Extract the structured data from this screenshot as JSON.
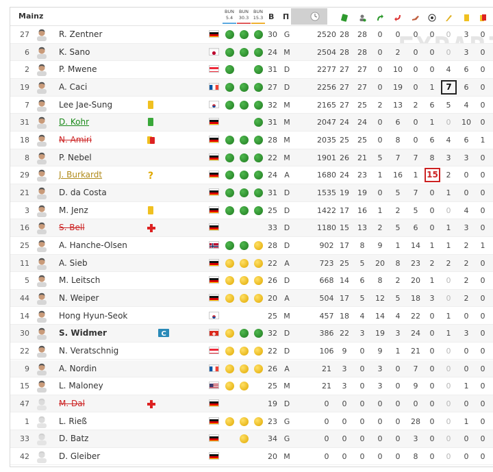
{
  "team": "Mainz",
  "watermark": "EXPARI.COM",
  "header": {
    "games": [
      {
        "opp": "BUN",
        "date": "5.4"
      },
      {
        "opp": "BUN",
        "date": "30.3"
      },
      {
        "opp": "BUN",
        "date": "15.3"
      }
    ],
    "age_label": "В",
    "pos_label": "П",
    "stat_icons": [
      "minutes-icon",
      "appearances-icon",
      "starts-icon",
      "sub-in-icon",
      "sub-out-icon",
      "assists-icon",
      "goals-icon",
      "own-goal-icon",
      "yellow-card-icon",
      "second-yellow-icon",
      "red-card-icon"
    ]
  },
  "colors": {
    "green": "#2e9a2e",
    "yellow": "#f0c020",
    "red": "#dd2222",
    "grey": "#d0d0d0"
  },
  "players": [
    {
      "num": "27",
      "name": "R. Zentner",
      "style": "",
      "flag": "de",
      "dots": [
        "g",
        "g",
        "g"
      ],
      "age": "30",
      "pos": "G",
      "min": "2520",
      "s": [
        "28",
        "28",
        "0",
        "0",
        "0",
        "0",
        "0",
        "3",
        "0",
        "0"
      ],
      "status": ""
    },
    {
      "num": "6",
      "name": "K. Sano",
      "style": "",
      "flag": "jp",
      "dots": [
        "g",
        "g",
        "g"
      ],
      "age": "24",
      "pos": "M",
      "min": "2504",
      "s": [
        "28",
        "28",
        "0",
        "2",
        "0",
        "0",
        "0",
        "3",
        "0",
        "0"
      ],
      "status": ""
    },
    {
      "num": "2",
      "name": "P. Mwene",
      "style": "",
      "flag": "at",
      "dots": [
        "g",
        "",
        "g"
      ],
      "age": "31",
      "pos": "D",
      "min": "2277",
      "s": [
        "27",
        "27",
        "0",
        "10",
        "0",
        "0",
        "4",
        "6",
        "0",
        "0"
      ],
      "status": ""
    },
    {
      "num": "19",
      "name": "A. Caci",
      "style": "",
      "flag": "fr",
      "dots": [
        "g",
        "g",
        "g"
      ],
      "age": "27",
      "pos": "D",
      "min": "2256",
      "s": [
        "27",
        "27",
        "0",
        "19",
        "0",
        "1",
        "7",
        "6",
        "0",
        "0"
      ],
      "status": "",
      "boxk": 6
    },
    {
      "num": "7",
      "name": "Lee Jae-Sung",
      "style": "",
      "flag": "kr",
      "dots": [
        "g",
        "g",
        "g"
      ],
      "age": "32",
      "pos": "M",
      "min": "2165",
      "s": [
        "27",
        "25",
        "2",
        "13",
        "2",
        "6",
        "5",
        "4",
        "0",
        "0"
      ],
      "status": "yellow"
    },
    {
      "num": "31",
      "name": "D. Kohr",
      "style": "green",
      "flag": "de",
      "dots": [
        "",
        "",
        "g"
      ],
      "age": "31",
      "pos": "M",
      "min": "2047",
      "s": [
        "24",
        "24",
        "0",
        "6",
        "0",
        "1",
        "0",
        "10",
        "0",
        "1"
      ],
      "status": "green"
    },
    {
      "num": "18",
      "name": "N. Amiri",
      "style": "red",
      "flag": "de",
      "dots": [
        "g",
        "g",
        "g"
      ],
      "age": "28",
      "pos": "M",
      "min": "2035",
      "s": [
        "25",
        "25",
        "0",
        "8",
        "0",
        "6",
        "4",
        "6",
        "1",
        "1"
      ],
      "status": "yellowred"
    },
    {
      "num": "8",
      "name": "P. Nebel",
      "style": "",
      "flag": "de",
      "dots": [
        "g",
        "g",
        "g"
      ],
      "age": "22",
      "pos": "M",
      "min": "1901",
      "s": [
        "26",
        "21",
        "5",
        "7",
        "7",
        "8",
        "3",
        "3",
        "0",
        "0"
      ],
      "status": ""
    },
    {
      "num": "29",
      "name": "J. Burkardt",
      "style": "gold",
      "flag": "de",
      "dots": [
        "g",
        "g",
        "g"
      ],
      "age": "24",
      "pos": "A",
      "min": "1680",
      "s": [
        "24",
        "23",
        "1",
        "16",
        "1",
        "15",
        "2",
        "0",
        "0",
        "0"
      ],
      "status": "question",
      "boxr": 5
    },
    {
      "num": "21",
      "name": "D. da Costa",
      "style": "",
      "flag": "de",
      "dots": [
        "g",
        "g",
        "g"
      ],
      "age": "31",
      "pos": "D",
      "min": "1535",
      "s": [
        "19",
        "19",
        "0",
        "5",
        "7",
        "0",
        "1",
        "0",
        "0",
        "0"
      ],
      "status": ""
    },
    {
      "num": "3",
      "name": "M. Jenz",
      "style": "",
      "flag": "de",
      "dots": [
        "g",
        "g",
        "g"
      ],
      "age": "25",
      "pos": "D",
      "min": "1422",
      "s": [
        "17",
        "16",
        "1",
        "2",
        "5",
        "0",
        "0",
        "4",
        "0",
        "0"
      ],
      "status": "yellow"
    },
    {
      "num": "16",
      "name": "S. Bell",
      "style": "red",
      "flag": "de",
      "dots": [
        "",
        "",
        ""
      ],
      "age": "33",
      "pos": "D",
      "min": "1180",
      "s": [
        "15",
        "13",
        "2",
        "5",
        "6",
        "0",
        "1",
        "3",
        "0",
        "0"
      ],
      "status": "injury"
    },
    {
      "num": "25",
      "name": "A. Hanche-Olsen",
      "style": "",
      "flag": "no",
      "dots": [
        "g",
        "g",
        "y"
      ],
      "age": "28",
      "pos": "D",
      "min": "902",
      "s": [
        "17",
        "8",
        "9",
        "1",
        "14",
        "1",
        "1",
        "2",
        "1",
        "0"
      ],
      "status": ""
    },
    {
      "num": "11",
      "name": "A. Sieb",
      "style": "",
      "flag": "de",
      "dots": [
        "y",
        "y",
        "y"
      ],
      "age": "22",
      "pos": "A",
      "min": "723",
      "s": [
        "25",
        "5",
        "20",
        "8",
        "23",
        "2",
        "2",
        "2",
        "0",
        "0"
      ],
      "status": ""
    },
    {
      "num": "5",
      "name": "M. Leitsch",
      "style": "",
      "flag": "de",
      "dots": [
        "y",
        "y",
        "y"
      ],
      "age": "26",
      "pos": "D",
      "min": "668",
      "s": [
        "14",
        "6",
        "8",
        "2",
        "20",
        "1",
        "0",
        "2",
        "0",
        "0"
      ],
      "status": ""
    },
    {
      "num": "44",
      "name": "N. Weiper",
      "style": "",
      "flag": "de",
      "dots": [
        "y",
        "y",
        "y"
      ],
      "age": "20",
      "pos": "A",
      "min": "504",
      "s": [
        "17",
        "5",
        "12",
        "5",
        "18",
        "3",
        "0",
        "2",
        "0",
        "0"
      ],
      "status": ""
    },
    {
      "num": "14",
      "name": "Hong Hyun-Seok",
      "style": "",
      "flag": "kr",
      "dots": [
        "",
        "",
        ""
      ],
      "age": "25",
      "pos": "M",
      "min": "457",
      "s": [
        "18",
        "4",
        "14",
        "4",
        "22",
        "0",
        "1",
        "0",
        "0",
        "0"
      ],
      "status": ""
    },
    {
      "num": "30",
      "name": "S. Widmer",
      "style": "bold",
      "flag": "ch",
      "dots": [
        "y",
        "g",
        "g"
      ],
      "age": "32",
      "pos": "D",
      "min": "386",
      "s": [
        "22",
        "3",
        "19",
        "3",
        "24",
        "0",
        "1",
        "3",
        "0",
        "0"
      ],
      "status": "captain"
    },
    {
      "num": "22",
      "name": "N. Veratschnig",
      "style": "",
      "flag": "at",
      "dots": [
        "y",
        "y",
        "y"
      ],
      "age": "22",
      "pos": "D",
      "min": "106",
      "s": [
        "9",
        "0",
        "9",
        "1",
        "21",
        "0",
        "0",
        "0",
        "0",
        "0"
      ],
      "status": ""
    },
    {
      "num": "9",
      "name": "A. Nordin",
      "style": "",
      "flag": "fr",
      "dots": [
        "y",
        "y",
        "y"
      ],
      "age": "26",
      "pos": "A",
      "min": "21",
      "s": [
        "3",
        "0",
        "3",
        "0",
        "7",
        "0",
        "0",
        "0",
        "0",
        "0"
      ],
      "status": ""
    },
    {
      "num": "15",
      "name": "L. Maloney",
      "style": "",
      "flag": "us",
      "dots": [
        "y",
        "y",
        ""
      ],
      "age": "25",
      "pos": "M",
      "min": "21",
      "s": [
        "3",
        "0",
        "3",
        "0",
        "9",
        "0",
        "0",
        "1",
        "0",
        "0"
      ],
      "status": ""
    },
    {
      "num": "47",
      "name": "M. Dal",
      "style": "red",
      "flag": "de",
      "dots": [
        "",
        "",
        ""
      ],
      "age": "19",
      "pos": "D",
      "min": "0",
      "s": [
        "0",
        "0",
        "0",
        "0",
        "0",
        "0",
        "0",
        "0",
        "0",
        "0"
      ],
      "status": "injury"
    },
    {
      "num": "1",
      "name": "L. Rieß",
      "style": "",
      "flag": "de",
      "dots": [
        "y",
        "y",
        "y"
      ],
      "age": "23",
      "pos": "G",
      "min": "0",
      "s": [
        "0",
        "0",
        "0",
        "0",
        "28",
        "0",
        "0",
        "1",
        "0",
        "0"
      ],
      "status": ""
    },
    {
      "num": "33",
      "name": "D. Batz",
      "style": "",
      "flag": "de",
      "dots": [
        "",
        "y",
        ""
      ],
      "age": "34",
      "pos": "G",
      "min": "0",
      "s": [
        "0",
        "0",
        "0",
        "0",
        "3",
        "0",
        "0",
        "0",
        "0",
        "0"
      ],
      "status": ""
    },
    {
      "num": "42",
      "name": "D. Gleiber",
      "style": "",
      "flag": "de",
      "dots": [
        "",
        "",
        ""
      ],
      "age": "20",
      "pos": "M",
      "min": "0",
      "s": [
        "0",
        "0",
        "0",
        "0",
        "8",
        "0",
        "0",
        "0",
        "0",
        "0"
      ],
      "status": ""
    }
  ]
}
